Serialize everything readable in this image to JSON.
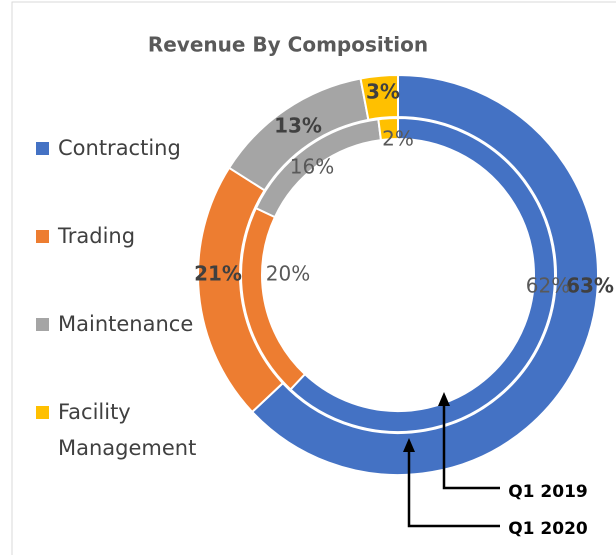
{
  "chart_data": {
    "type": "donut",
    "title": "Revenue By Composition",
    "categories": [
      "Contracting",
      "Trading",
      "Maintenance",
      "Facility Management"
    ],
    "colors": [
      "#4472c4",
      "#ed7d31",
      "#a5a5a5",
      "#ffc000"
    ],
    "series": [
      {
        "name": "Q1 2020",
        "values": [
          63,
          21,
          13,
          3
        ],
        "value_labels": [
          "63%",
          "21%",
          "13%",
          "3%"
        ]
      },
      {
        "name": "Q1 2019",
        "values": [
          62,
          20,
          16,
          2
        ],
        "value_labels": [
          "62%",
          "20%",
          "16%",
          "2%"
        ]
      }
    ]
  }
}
